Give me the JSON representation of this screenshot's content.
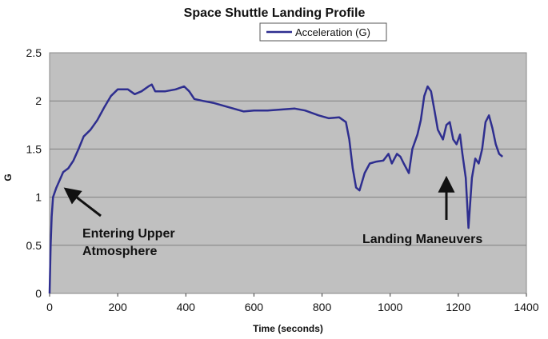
{
  "chart_data": {
    "type": "line",
    "title": "Space Shuttle Landing Profile",
    "xlabel": "Time (seconds)",
    "ylabel": "G",
    "xlim": [
      0,
      1400
    ],
    "ylim": [
      0,
      2.5
    ],
    "x_ticks": [
      "0",
      "200",
      "400",
      "600",
      "800",
      "1000",
      "1200",
      "1400"
    ],
    "y_ticks": [
      "0",
      "0.5",
      "1",
      "1.5",
      "2",
      "2.5"
    ],
    "grid": true,
    "plot_background": "#c0c0c0",
    "legend_position": "top-right",
    "series": [
      {
        "name": "Acceleration (G)",
        "color": "#2e2e8f",
        "points": [
          [
            0,
            0
          ],
          [
            3,
            0.5
          ],
          [
            6,
            0.8
          ],
          [
            10,
            1.0
          ],
          [
            20,
            1.1
          ],
          [
            30,
            1.18
          ],
          [
            40,
            1.26
          ],
          [
            55,
            1.3
          ],
          [
            70,
            1.38
          ],
          [
            85,
            1.5
          ],
          [
            100,
            1.63
          ],
          [
            120,
            1.7
          ],
          [
            140,
            1.8
          ],
          [
            160,
            1.93
          ],
          [
            180,
            2.05
          ],
          [
            200,
            2.12
          ],
          [
            230,
            2.12
          ],
          [
            250,
            2.07
          ],
          [
            270,
            2.1
          ],
          [
            290,
            2.15
          ],
          [
            300,
            2.17
          ],
          [
            310,
            2.1
          ],
          [
            340,
            2.1
          ],
          [
            370,
            2.12
          ],
          [
            395,
            2.15
          ],
          [
            410,
            2.1
          ],
          [
            425,
            2.02
          ],
          [
            450,
            2.0
          ],
          [
            480,
            1.98
          ],
          [
            510,
            1.95
          ],
          [
            540,
            1.92
          ],
          [
            570,
            1.89
          ],
          [
            600,
            1.9
          ],
          [
            640,
            1.9
          ],
          [
            680,
            1.91
          ],
          [
            720,
            1.92
          ],
          [
            750,
            1.9
          ],
          [
            790,
            1.85
          ],
          [
            820,
            1.82
          ],
          [
            850,
            1.83
          ],
          [
            870,
            1.78
          ],
          [
            880,
            1.6
          ],
          [
            890,
            1.3
          ],
          [
            900,
            1.1
          ],
          [
            910,
            1.07
          ],
          [
            925,
            1.25
          ],
          [
            940,
            1.35
          ],
          [
            960,
            1.37
          ],
          [
            980,
            1.38
          ],
          [
            995,
            1.45
          ],
          [
            1005,
            1.35
          ],
          [
            1020,
            1.45
          ],
          [
            1030,
            1.42
          ],
          [
            1040,
            1.35
          ],
          [
            1055,
            1.25
          ],
          [
            1065,
            1.5
          ],
          [
            1080,
            1.65
          ],
          [
            1090,
            1.8
          ],
          [
            1100,
            2.05
          ],
          [
            1110,
            2.15
          ],
          [
            1120,
            2.1
          ],
          [
            1130,
            1.9
          ],
          [
            1140,
            1.7
          ],
          [
            1155,
            1.6
          ],
          [
            1165,
            1.75
          ],
          [
            1175,
            1.78
          ],
          [
            1185,
            1.6
          ],
          [
            1195,
            1.55
          ],
          [
            1205,
            1.65
          ],
          [
            1212,
            1.45
          ],
          [
            1222,
            1.2
          ],
          [
            1230,
            0.68
          ],
          [
            1240,
            1.2
          ],
          [
            1250,
            1.4
          ],
          [
            1260,
            1.35
          ],
          [
            1270,
            1.5
          ],
          [
            1280,
            1.78
          ],
          [
            1290,
            1.85
          ],
          [
            1300,
            1.72
          ],
          [
            1310,
            1.55
          ],
          [
            1320,
            1.45
          ],
          [
            1330,
            1.42
          ]
        ]
      }
    ],
    "annotations": [
      {
        "lines": [
          "Entering Upper",
          "Atmosphere"
        ],
        "target": [
          50,
          1.1
        ]
      },
      {
        "lines": [
          "Landing Maneuvers"
        ],
        "target": [
          1160,
          1.2
        ]
      }
    ]
  }
}
